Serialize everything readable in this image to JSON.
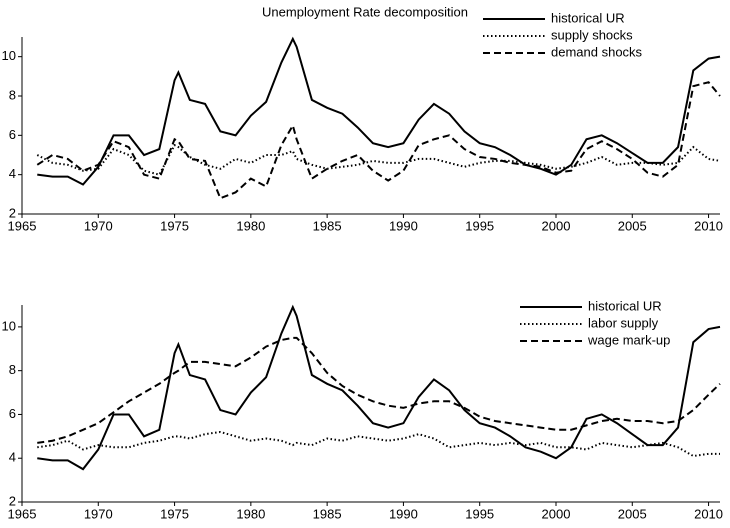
{
  "chart_data": [
    {
      "type": "line",
      "title": "Unemployment Rate decomposition",
      "x": [
        1966,
        1967,
        1968,
        1969,
        1970,
        1971,
        1972,
        1973,
        1974,
        1975,
        1975.25,
        1976,
        1977,
        1978,
        1979,
        1980,
        1981,
        1982,
        1982.75,
        1983,
        1984,
        1985,
        1986,
        1987,
        1988,
        1989,
        1990,
        1991,
        1992,
        1993,
        1994,
        1995,
        1996,
        1997,
        1998,
        1999,
        2000,
        2001,
        2002,
        2003,
        2004,
        2005,
        2006,
        2007,
        2008,
        2009,
        2010,
        2010.75
      ],
      "series": [
        {
          "name": "historical UR",
          "color": "#000000",
          "style": "solid",
          "values": [
            4.0,
            3.9,
            3.9,
            3.5,
            4.4,
            6.0,
            6.0,
            5.0,
            5.3,
            8.8,
            9.2,
            7.8,
            7.6,
            6.2,
            6.0,
            7.0,
            7.7,
            9.7,
            10.9,
            10.5,
            7.8,
            7.4,
            7.1,
            6.4,
            5.6,
            5.4,
            5.6,
            6.8,
            7.6,
            7.1,
            6.2,
            5.6,
            5.4,
            5.0,
            4.5,
            4.3,
            4.0,
            4.5,
            5.8,
            6.0,
            5.6,
            5.1,
            4.6,
            4.6,
            5.4,
            9.3,
            9.9,
            10.0
          ]
        },
        {
          "name": "supply shocks",
          "color": "#000000",
          "style": "dotted",
          "values": [
            5.0,
            4.6,
            4.5,
            4.2,
            4.3,
            5.3,
            5.0,
            4.2,
            4.0,
            5.5,
            5.4,
            4.9,
            4.5,
            4.3,
            4.8,
            4.6,
            5.0,
            5.0,
            5.2,
            4.8,
            4.5,
            4.3,
            4.4,
            4.5,
            4.7,
            4.6,
            4.6,
            4.8,
            4.8,
            4.6,
            4.4,
            4.6,
            4.7,
            4.7,
            4.6,
            4.5,
            4.3,
            4.4,
            4.6,
            4.9,
            4.5,
            4.6,
            4.6,
            4.5,
            4.6,
            5.4,
            4.8,
            4.7
          ]
        },
        {
          "name": "demand shocks",
          "color": "#000000",
          "style": "dashed",
          "values": [
            4.5,
            5.0,
            4.8,
            4.2,
            4.5,
            5.7,
            5.4,
            4.0,
            3.8,
            5.8,
            5.7,
            4.8,
            4.7,
            2.8,
            3.1,
            3.8,
            3.4,
            5.5,
            6.5,
            5.8,
            3.8,
            4.3,
            4.7,
            5.0,
            4.2,
            3.7,
            4.2,
            5.5,
            5.8,
            6.0,
            5.3,
            4.9,
            4.8,
            4.6,
            4.5,
            4.4,
            4.1,
            4.2,
            5.3,
            5.7,
            5.3,
            4.8,
            4.1,
            3.9,
            4.5,
            8.5,
            8.7,
            8.0
          ]
        }
      ],
      "xlim": [
        1965,
        2010.75
      ],
      "xticks": [
        1965,
        1970,
        1975,
        1980,
        1985,
        1990,
        1995,
        2000,
        2005,
        2010
      ],
      "ylim": [
        2,
        11
      ],
      "yticks": [
        2,
        4,
        6,
        8,
        10
      ],
      "legend": "upper right",
      "grid": false
    },
    {
      "type": "line",
      "x": [
        1966,
        1967,
        1968,
        1969,
        1970,
        1971,
        1972,
        1973,
        1974,
        1975,
        1975.25,
        1976,
        1977,
        1978,
        1979,
        1980,
        1981,
        1982,
        1982.75,
        1983,
        1984,
        1985,
        1986,
        1987,
        1988,
        1989,
        1990,
        1991,
        1992,
        1993,
        1994,
        1995,
        1996,
        1997,
        1998,
        1999,
        2000,
        2001,
        2002,
        2003,
        2004,
        2005,
        2006,
        2007,
        2008,
        2009,
        2010,
        2010.75
      ],
      "series": [
        {
          "name": "historical UR",
          "color": "#000000",
          "style": "solid",
          "values": [
            4.0,
            3.9,
            3.9,
            3.5,
            4.4,
            6.0,
            6.0,
            5.0,
            5.3,
            8.8,
            9.2,
            7.8,
            7.6,
            6.2,
            6.0,
            7.0,
            7.7,
            9.7,
            10.9,
            10.5,
            7.8,
            7.4,
            7.1,
            6.4,
            5.6,
            5.4,
            5.6,
            6.8,
            7.6,
            7.1,
            6.2,
            5.6,
            5.4,
            5.0,
            4.5,
            4.3,
            4.0,
            4.5,
            5.8,
            6.0,
            5.6,
            5.1,
            4.6,
            4.6,
            5.4,
            9.3,
            9.9,
            10.0
          ]
        },
        {
          "name": "labor supply",
          "color": "#000000",
          "style": "dotted",
          "values": [
            4.5,
            4.6,
            4.8,
            4.4,
            4.6,
            4.5,
            4.5,
            4.7,
            4.8,
            5.0,
            5.0,
            4.9,
            5.1,
            5.2,
            5.0,
            4.8,
            4.9,
            4.8,
            4.6,
            4.7,
            4.6,
            4.9,
            4.8,
            5.0,
            4.9,
            4.8,
            4.9,
            5.1,
            4.9,
            4.5,
            4.6,
            4.7,
            4.6,
            4.7,
            4.6,
            4.7,
            4.5,
            4.5,
            4.4,
            4.7,
            4.6,
            4.5,
            4.6,
            4.7,
            4.5,
            4.1,
            4.2,
            4.2
          ]
        },
        {
          "name": "wage mark-up",
          "color": "#000000",
          "style": "dashed",
          "values": [
            4.7,
            4.8,
            5.0,
            5.3,
            5.6,
            6.1,
            6.6,
            7.0,
            7.4,
            7.9,
            8.0,
            8.4,
            8.4,
            8.3,
            8.2,
            8.6,
            9.1,
            9.4,
            9.5,
            9.5,
            8.8,
            7.9,
            7.3,
            6.9,
            6.6,
            6.4,
            6.3,
            6.5,
            6.6,
            6.6,
            6.3,
            5.9,
            5.7,
            5.6,
            5.5,
            5.4,
            5.3,
            5.3,
            5.5,
            5.7,
            5.8,
            5.7,
            5.7,
            5.6,
            5.7,
            6.2,
            6.9,
            7.4
          ]
        }
      ],
      "xlim": [
        1965,
        2010.75
      ],
      "xticks": [
        1965,
        1970,
        1975,
        1980,
        1985,
        1990,
        1995,
        2000,
        2005,
        2010
      ],
      "ylim": [
        2,
        11
      ],
      "yticks": [
        2,
        4,
        6,
        8,
        10
      ],
      "legend": "upper right",
      "grid": false
    }
  ]
}
